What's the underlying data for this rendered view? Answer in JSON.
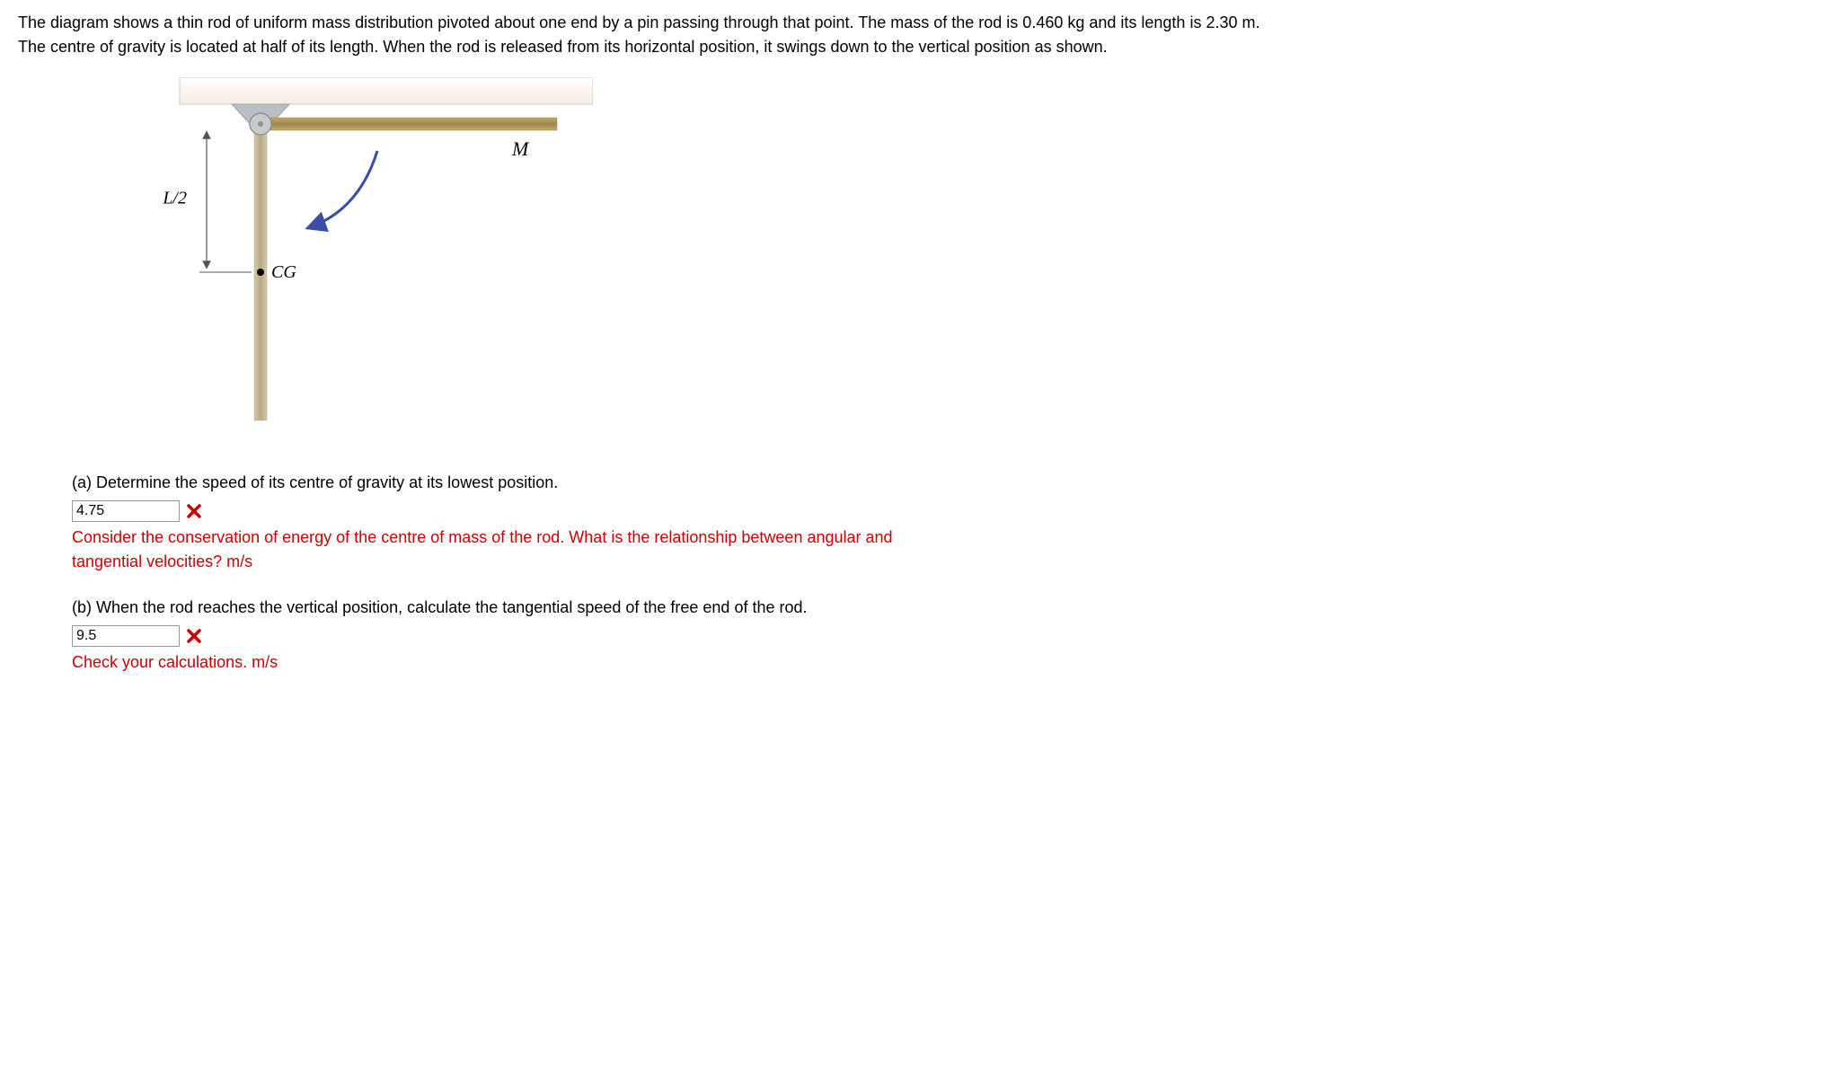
{
  "problem": {
    "text": "The diagram shows a thin rod of uniform mass distribution pivoted about one end by a pin passing through that point. The mass of the rod is 0.460 kg and its length is 2.30 m. The centre of gravity is located at half of its length. When the rod is released from its horizontal position, it swings down to the vertical position as shown."
  },
  "diagram": {
    "label_M": "M",
    "label_L2": "L/2",
    "label_CG": "CG",
    "colors": {
      "ceiling_fill": "#f5ede3",
      "ceiling_stroke": "#d6cdb8",
      "bracket_fill": "#b9bfc4",
      "bracket_stroke": "#9aa0a5",
      "pin_fill": "#c9ccce",
      "pin_stroke": "#8e9398",
      "rod_horiz_fill": "#c2a96a",
      "rod_horiz_dark": "#9e864a",
      "rod_vert_fill": "#d6c9a8",
      "rod_vert_dark": "#b8a985",
      "arrow": "#3a4ea8",
      "dim_line": "#555",
      "text": "#000",
      "cg_dot": "#000"
    }
  },
  "parts": {
    "a": {
      "question": "(a) Determine the speed of its centre of gravity at its lowest position.",
      "answer": "4.75",
      "feedback_line1": "Consider the conservation of energy of the centre of mass of the rod. What is the relationship between angular and",
      "feedback_line2_prefix": "tangential velocities?",
      "unit": "m/s"
    },
    "b": {
      "question": "(b) When the rod reaches the vertical position, calculate the tangential speed of the free end of the rod.",
      "answer": "9.5",
      "feedback_prefix": "Check your calculations.",
      "unit": "m/s"
    }
  }
}
